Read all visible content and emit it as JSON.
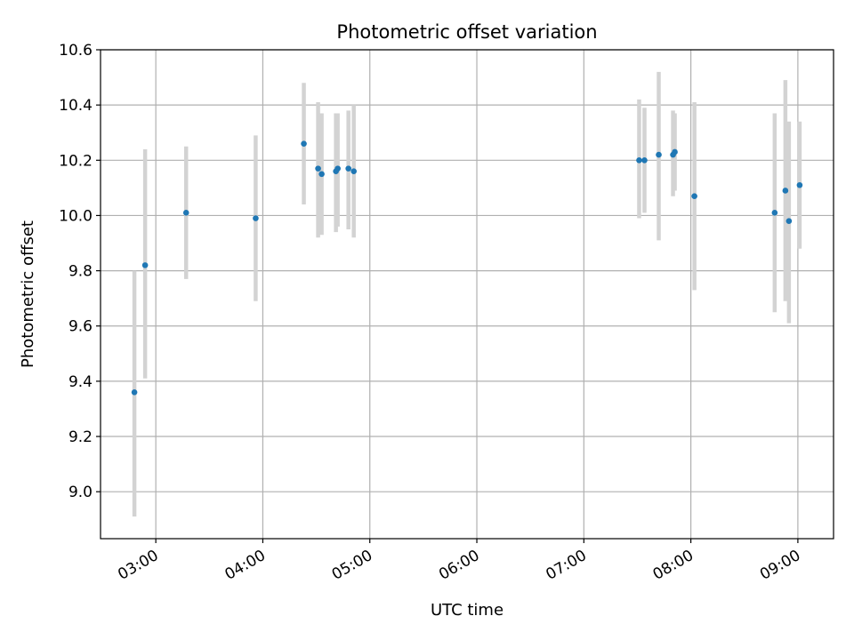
{
  "chart_data": {
    "type": "scatter",
    "title": "Photometric offset variation",
    "xlabel": "UTC time",
    "ylabel": "Photometric offset",
    "x_axis_type": "time",
    "xlim": [
      "02:29",
      "09:20"
    ],
    "ylim": [
      8.83,
      10.6
    ],
    "x_ticks": [
      "03:00",
      "04:00",
      "05:00",
      "06:00",
      "07:00",
      "08:00",
      "09:00"
    ],
    "y_ticks": [
      "9.0",
      "9.2",
      "9.4",
      "9.6",
      "9.8",
      "10.0",
      "10.2",
      "10.4",
      "10.6"
    ],
    "grid": true,
    "colors": {
      "points": "#1f77b4",
      "error_bars": "#d3d3d3",
      "grid": "#b0b0b0"
    },
    "points": [
      {
        "x": "02:48",
        "y": 9.36,
        "lo": 8.91,
        "hi": 9.8
      },
      {
        "x": "02:54",
        "y": 9.82,
        "lo": 9.41,
        "hi": 10.24
      },
      {
        "x": "03:17",
        "y": 10.01,
        "lo": 9.77,
        "hi": 10.25
      },
      {
        "x": "03:56",
        "y": 9.99,
        "lo": 9.69,
        "hi": 10.29
      },
      {
        "x": "04:23",
        "y": 10.26,
        "lo": 10.04,
        "hi": 10.48
      },
      {
        "x": "04:31",
        "y": 10.17,
        "lo": 9.92,
        "hi": 10.41
      },
      {
        "x": "04:33",
        "y": 10.15,
        "lo": 9.93,
        "hi": 10.37
      },
      {
        "x": "04:41",
        "y": 10.16,
        "lo": 9.94,
        "hi": 10.37
      },
      {
        "x": "04:42",
        "y": 10.17,
        "lo": 9.96,
        "hi": 10.37
      },
      {
        "x": "04:48",
        "y": 10.17,
        "lo": 9.95,
        "hi": 10.38
      },
      {
        "x": "04:51",
        "y": 10.16,
        "lo": 9.92,
        "hi": 10.4
      },
      {
        "x": "07:31",
        "y": 10.2,
        "lo": 9.99,
        "hi": 10.42
      },
      {
        "x": "07:34",
        "y": 10.2,
        "lo": 10.01,
        "hi": 10.39
      },
      {
        "x": "07:42",
        "y": 10.22,
        "lo": 9.91,
        "hi": 10.52
      },
      {
        "x": "07:50",
        "y": 10.22,
        "lo": 10.07,
        "hi": 10.38
      },
      {
        "x": "07:51",
        "y": 10.23,
        "lo": 10.09,
        "hi": 10.37
      },
      {
        "x": "08:02",
        "y": 10.07,
        "lo": 9.73,
        "hi": 10.41
      },
      {
        "x": "08:47",
        "y": 10.01,
        "lo": 9.65,
        "hi": 10.37
      },
      {
        "x": "08:53",
        "y": 10.09,
        "lo": 9.69,
        "hi": 10.49
      },
      {
        "x": "08:55",
        "y": 9.98,
        "lo": 9.61,
        "hi": 10.34
      },
      {
        "x": "09:01",
        "y": 10.11,
        "lo": 9.88,
        "hi": 10.34
      }
    ]
  }
}
